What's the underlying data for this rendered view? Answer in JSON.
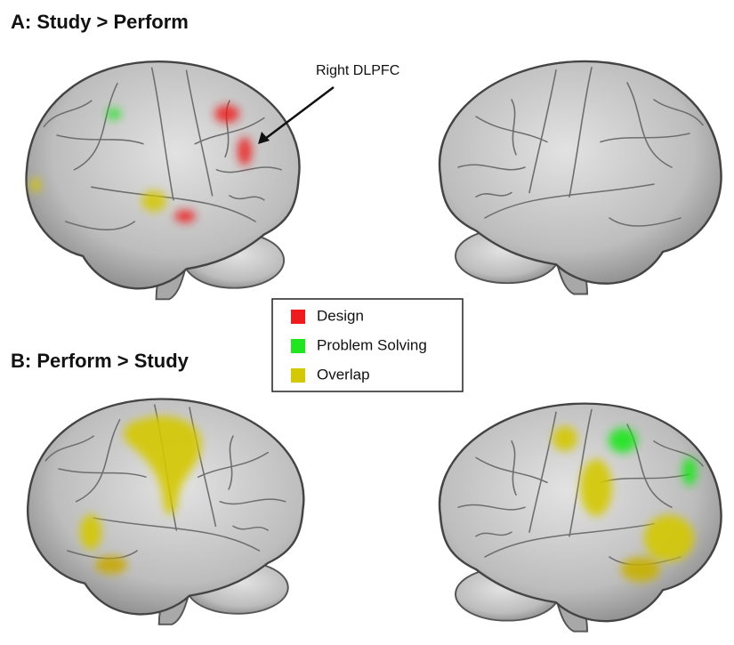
{
  "panels": [
    {
      "title": "A: Study > Perform"
    },
    {
      "title": "B: Perform > Study"
    }
  ],
  "annotation": "Right DLPFC",
  "legend": {
    "items": [
      {
        "label": "Design",
        "color": "#ee1c1c"
      },
      {
        "label": "Problem Solving",
        "color": "#1fe61f"
      },
      {
        "label": "Overlap",
        "color": "#d4c800"
      }
    ]
  }
}
